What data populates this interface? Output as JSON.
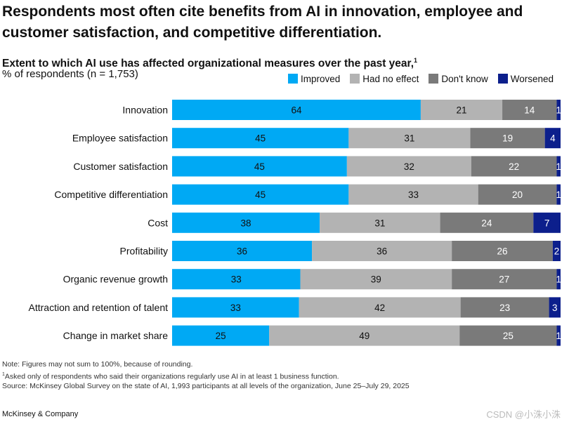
{
  "title": "Respondents most often cite benefits from AI in innovation, employee and customer satisfaction, and competitive differentiation.",
  "subtitle": "Extent to which AI use has affected organizational measures over the past year,",
  "subtitle_footnote": "1",
  "units": "% of respondents (n = 1,753)",
  "colors": {
    "Improved": "#00a9f4",
    "Had no effect": "#b3b3b3",
    "Don't know": "#7a7a7a",
    "Worsened": "#0c1f8c"
  },
  "legend": [
    "Improved",
    "Had no effect",
    "Don't know",
    "Worsened"
  ],
  "chart_data": {
    "type": "bar",
    "orientation": "horizontal",
    "stacked": true,
    "title": "Extent to which AI use has affected organizational measures over the past year,",
    "xlabel": "% of respondents (n = 1,753)",
    "ylabel": "",
    "xlim": [
      0,
      100
    ],
    "grid": false,
    "legend_position": "top-right",
    "categories": [
      "Innovation",
      "Employee satisfaction",
      "Customer satisfaction",
      "Competitive differentiation",
      "Cost",
      "Profitability",
      "Organic revenue growth",
      "Attraction and retention of talent",
      "Change in market share"
    ],
    "series": [
      {
        "name": "Improved",
        "values": [
          64,
          45,
          45,
          45,
          38,
          36,
          33,
          33,
          25
        ]
      },
      {
        "name": "Had no effect",
        "values": [
          21,
          31,
          32,
          33,
          31,
          36,
          39,
          42,
          49
        ]
      },
      {
        "name": "Don't know",
        "values": [
          14,
          19,
          22,
          20,
          24,
          26,
          27,
          23,
          25
        ]
      },
      {
        "name": "Worsened",
        "values": [
          1,
          4,
          1,
          1,
          7,
          2,
          1,
          3,
          1
        ]
      }
    ]
  },
  "notes": [
    "Note: Figures may not sum to 100%, because of rounding.",
    "Asked only of respondents who said their organizations regularly use AI in at least 1 business function.",
    "Source: McKinsey Global Survey on the state of AI, 1,993 participants at all levels of the organization, June 25–July 29, 2025"
  ],
  "note_footnote": "1",
  "brand": "McKinsey & Company",
  "watermark": "CSDN @小洙小洙"
}
